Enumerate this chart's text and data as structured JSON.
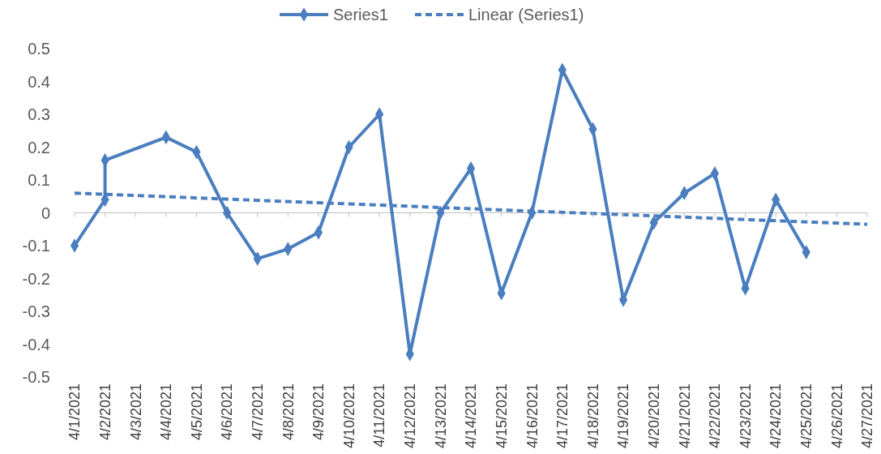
{
  "chart_data": {
    "type": "line",
    "legend": "top",
    "marker": "diamond",
    "x": [
      "2021-04-01",
      "2021-04-02",
      "2021-04-02",
      "2021-04-04",
      "2021-04-05",
      "2021-04-06",
      "2021-04-07",
      "2021-04-08",
      "2021-04-09",
      "2021-04-10",
      "2021-04-11",
      "2021-04-12",
      "2021-04-13",
      "2021-04-14",
      "2021-04-15",
      "2021-04-16",
      "2021-04-17",
      "2021-04-18",
      "2021-04-19",
      "2021-04-20",
      "2021-04-21",
      "2021-04-22",
      "2021-04-23",
      "2021-04-24",
      "2021-04-25"
    ],
    "series": [
      {
        "name": "Series1",
        "color": "#4a7ebf",
        "line_style": "solid",
        "values": [
          -0.1,
          0.04,
          0.16,
          0.23,
          0.185,
          0.0,
          -0.14,
          -0.11,
          -0.06,
          0.2,
          0.3,
          -0.43,
          0.0,
          0.135,
          -0.245,
          0.0,
          0.435,
          0.255,
          -0.265,
          -0.03,
          0.06,
          0.12,
          -0.23,
          0.04,
          -0.12
        ]
      },
      {
        "name": "Linear (Series1)",
        "type": "line",
        "color": "#4a7ebf",
        "line_style": "dashed",
        "marker": "none",
        "x": [
          "2021-04-01",
          "2021-04-27"
        ],
        "values": [
          0.06,
          -0.035
        ]
      }
    ],
    "xlim": [
      "2021-04-01",
      "2021-04-27"
    ],
    "xticks": [
      {
        "value": "2021-04-01",
        "label": "4/1/2021"
      },
      {
        "value": "2021-04-02",
        "label": "4/2/2021"
      },
      {
        "value": "2021-04-03",
        "label": "4/3/2021"
      },
      {
        "value": "2021-04-04",
        "label": "4/4/2021"
      },
      {
        "value": "2021-04-05",
        "label": "4/5/2021"
      },
      {
        "value": "2021-04-06",
        "label": "4/6/2021"
      },
      {
        "value": "2021-04-07",
        "label": "4/7/2021"
      },
      {
        "value": "2021-04-08",
        "label": "4/8/2021"
      },
      {
        "value": "2021-04-09",
        "label": "4/9/2021"
      },
      {
        "value": "2021-04-10",
        "label": "4/10/2021"
      },
      {
        "value": "2021-04-11",
        "label": "4/11/2021"
      },
      {
        "value": "2021-04-12",
        "label": "4/12/2021"
      },
      {
        "value": "2021-04-13",
        "label": "4/13/2021"
      },
      {
        "value": "2021-04-14",
        "label": "4/14/2021"
      },
      {
        "value": "2021-04-15",
        "label": "4/15/2021"
      },
      {
        "value": "2021-04-16",
        "label": "4/16/2021"
      },
      {
        "value": "2021-04-17",
        "label": "4/17/2021"
      },
      {
        "value": "2021-04-18",
        "label": "4/18/2021"
      },
      {
        "value": "2021-04-19",
        "label": "4/19/2021"
      },
      {
        "value": "2021-04-20",
        "label": "4/20/2021"
      },
      {
        "value": "2021-04-21",
        "label": "4/21/2021"
      },
      {
        "value": "2021-04-22",
        "label": "4/22/2021"
      },
      {
        "value": "2021-04-23",
        "label": "4/23/2021"
      },
      {
        "value": "2021-04-24",
        "label": "4/24/2021"
      },
      {
        "value": "2021-04-25",
        "label": "4/25/2021"
      },
      {
        "value": "2021-04-26",
        "label": "4/26/2021"
      },
      {
        "value": "2021-04-27",
        "label": "4/27/2021"
      }
    ],
    "ylim": [
      -0.5,
      0.5
    ],
    "yticks": [
      -0.5,
      -0.4,
      -0.3,
      -0.2,
      -0.1,
      0,
      0.1,
      0.2,
      0.3,
      0.4,
      0.5
    ]
  }
}
